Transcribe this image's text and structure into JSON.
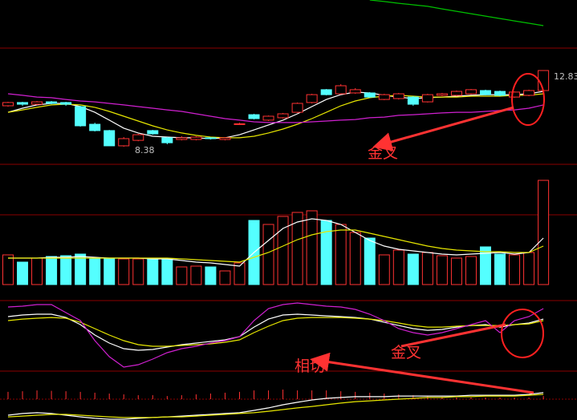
{
  "chart_data": [
    {
      "type": "candlestick",
      "ylim": [
        7.35,
        16.95
      ],
      "up_color": "#ff3232",
      "down_color": "#54ffff",
      "marked_high": 12.83,
      "marked_low": 8.38,
      "annotation": "金叉",
      "ohlc": [
        [
          10.77,
          10.96,
          11.0,
          10.72
        ],
        [
          10.96,
          10.86,
          11.0,
          10.77
        ],
        [
          10.86,
          11.0,
          11.05,
          10.81
        ],
        [
          11.0,
          10.91,
          11.05,
          10.86
        ],
        [
          10.96,
          10.86,
          11.0,
          10.77
        ],
        [
          10.72,
          9.6,
          10.77,
          9.55
        ],
        [
          9.69,
          9.32,
          9.78,
          9.27
        ],
        [
          9.32,
          8.43,
          9.36,
          8.43
        ],
        [
          8.43,
          8.85,
          8.94,
          8.38
        ],
        [
          8.75,
          9.08,
          9.13,
          8.7
        ],
        [
          9.32,
          9.13,
          9.36,
          9.08
        ],
        [
          8.9,
          8.61,
          8.94,
          8.52
        ],
        [
          8.8,
          8.9,
          8.99,
          8.75
        ],
        [
          8.8,
          8.94,
          8.99,
          8.75
        ],
        [
          8.9,
          8.85,
          8.94,
          8.8
        ],
        [
          8.8,
          8.9,
          8.94,
          8.75
        ],
        [
          9.69,
          9.72,
          9.78,
          9.65
        ],
        [
          10.25,
          10.02,
          10.3,
          9.97
        ],
        [
          9.93,
          10.16,
          10.2,
          9.88
        ],
        [
          10.07,
          10.3,
          10.35,
          10.02
        ],
        [
          10.39,
          10.91,
          10.96,
          10.35
        ],
        [
          10.96,
          11.42,
          11.47,
          10.91
        ],
        [
          11.71,
          11.42,
          11.75,
          11.38
        ],
        [
          11.47,
          11.94,
          12.03,
          11.42
        ],
        [
          11.52,
          11.71,
          11.8,
          11.47
        ],
        [
          11.52,
          11.28,
          11.57,
          11.24
        ],
        [
          11.14,
          11.42,
          11.47,
          11.1
        ],
        [
          11.19,
          11.47,
          11.52,
          11.14
        ],
        [
          11.28,
          10.86,
          11.33,
          10.77
        ],
        [
          11.0,
          11.42,
          11.47,
          10.96
        ],
        [
          11.38,
          11.47,
          11.52,
          11.33
        ],
        [
          11.38,
          11.61,
          11.66,
          11.33
        ],
        [
          11.47,
          11.71,
          11.75,
          11.42
        ],
        [
          11.66,
          11.42,
          11.71,
          11.38
        ],
        [
          11.61,
          11.38,
          11.66,
          11.33
        ],
        [
          11.28,
          11.57,
          11.61,
          11.24
        ],
        [
          11.38,
          11.66,
          11.71,
          11.33
        ],
        [
          11.66,
          12.83,
          12.83,
          11.61
        ]
      ],
      "series": [
        {
          "color": "#ffffff",
          "values": [
            10.39,
            10.63,
            10.82,
            10.91,
            10.91,
            10.72,
            10.39,
            9.93,
            9.46,
            9.18,
            8.99,
            8.94,
            8.9,
            8.9,
            8.85,
            8.9,
            9.08,
            9.36,
            9.65,
            9.93,
            10.3,
            10.72,
            11.14,
            11.42,
            11.57,
            11.52,
            11.38,
            11.28,
            11.19,
            11.24,
            11.28,
            11.33,
            11.38,
            11.42,
            11.42,
            11.42,
            11.47,
            11.61
          ]
        },
        {
          "color": "#e6e600",
          "values": [
            10.39,
            10.53,
            10.68,
            10.82,
            10.86,
            10.82,
            10.68,
            10.44,
            10.16,
            9.88,
            9.6,
            9.36,
            9.18,
            9.04,
            8.94,
            8.9,
            8.9,
            8.99,
            9.18,
            9.41,
            9.69,
            10.02,
            10.39,
            10.77,
            11.05,
            11.24,
            11.33,
            11.38,
            11.33,
            11.28,
            11.28,
            11.28,
            11.33,
            11.33,
            11.33,
            11.38,
            11.38,
            11.47
          ]
        },
        {
          "color": "#d020d0",
          "values": [
            11.47,
            11.38,
            11.28,
            11.24,
            11.14,
            11.05,
            11.0,
            10.91,
            10.82,
            10.72,
            10.63,
            10.53,
            10.44,
            10.3,
            10.16,
            10.02,
            9.93,
            9.83,
            9.79,
            9.79,
            9.79,
            9.83,
            9.88,
            9.93,
            9.97,
            10.07,
            10.11,
            10.21,
            10.25,
            10.3,
            10.35,
            10.39,
            10.39,
            10.44,
            10.49,
            10.53,
            10.63,
            10.82
          ]
        },
        {
          "color": "#00c000",
          "values": [
            null,
            null,
            null,
            null,
            null,
            null,
            null,
            null,
            null,
            null,
            null,
            null,
            null,
            null,
            null,
            null,
            null,
            null,
            null,
            null,
            null,
            null,
            null,
            null,
            null,
            16.95,
            16.86,
            16.76,
            16.67,
            16.58,
            16.43,
            16.29,
            16.15,
            16.01,
            15.87,
            15.73,
            15.59,
            15.45
          ]
        }
      ]
    },
    {
      "type": "volume",
      "ylim": [
        0,
        150
      ],
      "values": [
        37,
        28,
        33,
        35,
        36,
        38,
        32,
        33,
        32,
        32,
        33,
        32,
        22,
        23,
        22,
        17,
        27,
        80,
        75,
        85,
        90,
        92,
        80,
        75,
        65,
        58,
        37,
        43,
        38,
        40,
        36,
        33,
        35,
        47,
        38,
        37,
        40,
        130
      ],
      "series": [
        {
          "color": "#ffffff",
          "values": [
            33,
            33,
            33,
            34,
            34,
            35,
            34,
            33,
            33,
            33,
            32,
            32,
            30,
            28,
            27,
            25,
            23,
            40,
            55,
            70,
            78,
            82,
            80,
            75,
            65,
            55,
            48,
            44,
            42,
            40,
            38,
            37,
            38,
            39,
            40,
            38,
            40,
            58
          ]
        },
        {
          "color": "#e6e600",
          "values": [
            33,
            33,
            33,
            33,
            33,
            33,
            33,
            33,
            33,
            33,
            33,
            33,
            32,
            31,
            30,
            29,
            28,
            34,
            40,
            48,
            56,
            62,
            66,
            68,
            68,
            64,
            60,
            56,
            52,
            48,
            45,
            43,
            42,
            41,
            41,
            40,
            40,
            48
          ]
        }
      ]
    },
    {
      "type": "line",
      "ylim": [
        0,
        100
      ],
      "annotation": "金叉",
      "series": [
        {
          "color": "#ffffff",
          "values": [
            77.0,
            79.3,
            80.5,
            80.5,
            75.8,
            65.5,
            50.6,
            39.1,
            31.0,
            28.7,
            29.9,
            33.3,
            36.8,
            39.1,
            41.4,
            43.7,
            48.3,
            62.0,
            73.5,
            79.3,
            80.5,
            79.3,
            78.1,
            77.0,
            75.8,
            73.5,
            68.9,
            64.3,
            59.8,
            57.4,
            58.6,
            62.0,
            64.3,
            65.5,
            62.0,
            65.5,
            67.8,
            73.5
          ]
        },
        {
          "color": "#e6e600",
          "values": [
            71.3,
            73.5,
            74.7,
            75.8,
            74.7,
            68.9,
            59.8,
            50.6,
            42.5,
            36.8,
            34.5,
            34.5,
            35.6,
            36.8,
            37.9,
            40.2,
            43.7,
            54.0,
            63.2,
            71.3,
            74.7,
            75.8,
            75.8,
            75.8,
            74.7,
            73.5,
            71.3,
            67.8,
            64.3,
            62.0,
            62.0,
            63.2,
            64.3,
            64.3,
            64.3,
            65.5,
            66.6,
            71.3
          ]
        },
        {
          "color": "#d020d0",
          "values": [
            90.8,
            91.9,
            94.2,
            94.2,
            82.8,
            71.3,
            42.5,
            19.5,
            4.6,
            8.0,
            16.1,
            25.3,
            31.0,
            34.5,
            39.1,
            42.5,
            48.3,
            71.3,
            88.5,
            94.2,
            96.5,
            94.2,
            91.9,
            90.8,
            87.3,
            80.5,
            71.3,
            59.8,
            54.0,
            50.6,
            54.0,
            59.8,
            65.5,
            71.3,
            54.0,
            71.3,
            77.0,
            88.5
          ]
        }
      ]
    },
    {
      "type": "macd",
      "ylim": [
        -10,
        10
      ],
      "bar_color": "#ff3232",
      "annotation": "相切",
      "values": [
        3.5,
        3.8,
        4.2,
        4.0,
        3.8,
        3.5,
        3.1,
        2.7,
        2.3,
        1.9,
        1.9,
        1.5,
        1.9,
        2.3,
        2.7,
        3.1,
        3.5,
        4.2,
        4.2,
        4.6,
        4.2,
        4.2,
        4.2,
        3.8,
        3.5,
        3.1,
        2.7,
        2.3,
        1.9,
        1.5,
        1.2,
        0.8,
        0.8,
        0.8,
        0.8,
        0.8,
        0.8,
        1.5
      ],
      "series": [
        {
          "color": "#ffffff",
          "values": [
            -7.7,
            -6.9,
            -6.5,
            -6.9,
            -7.7,
            -8.5,
            -9.2,
            -9.6,
            -9.6,
            -9.2,
            -8.8,
            -8.5,
            -8.1,
            -7.7,
            -7.3,
            -6.9,
            -6.5,
            -5.4,
            -4.2,
            -2.7,
            -1.5,
            -0.4,
            0.4,
            0.8,
            1.2,
            1.2,
            1.2,
            1.5,
            1.5,
            1.5,
            1.5,
            1.5,
            1.9,
            1.9,
            1.9,
            1.9,
            2.3,
            3.1
          ]
        },
        {
          "color": "#e6e600",
          "values": [
            -8.5,
            -8.1,
            -7.7,
            -7.3,
            -7.3,
            -7.7,
            -8.1,
            -8.5,
            -8.8,
            -8.8,
            -8.8,
            -8.5,
            -8.5,
            -8.1,
            -7.7,
            -7.3,
            -6.9,
            -6.5,
            -5.8,
            -5.0,
            -4.2,
            -3.5,
            -2.7,
            -1.9,
            -1.2,
            -0.8,
            -0.4,
            0.0,
            0.4,
            0.8,
            0.8,
            1.2,
            1.2,
            1.5,
            1.5,
            1.5,
            1.9,
            2.3
          ]
        }
      ]
    }
  ]
}
